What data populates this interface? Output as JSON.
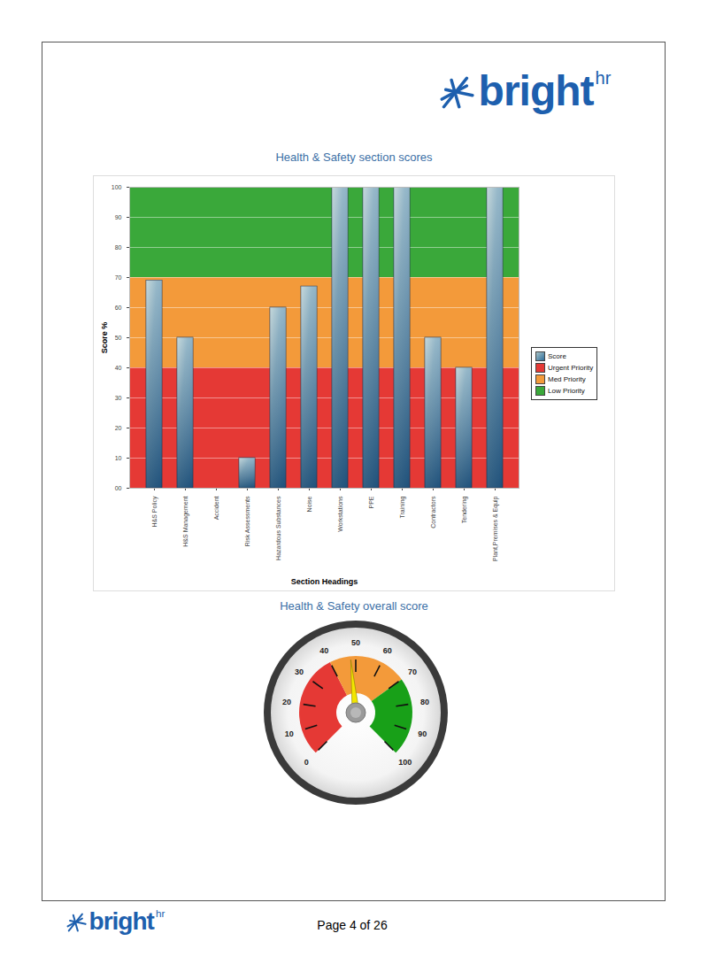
{
  "header": {
    "logo": "bright",
    "logo_sup": "hr"
  },
  "chart_data": [
    {
      "type": "bar",
      "title": "Health & Safety section scores",
      "categories": [
        "H&S Policy",
        "H&S Management",
        "Accident",
        "Risk Assessments",
        "Hazardous Substances",
        "Noise",
        "Workstations",
        "PPE",
        "Training",
        "Contractors",
        "Tendering",
        "Plant,Premises & Equip"
      ],
      "series": [
        {
          "name": "Score",
          "color": "#2f6d9a",
          "values": [
            69,
            50,
            0,
            10,
            60,
            67,
            100,
            100,
            100,
            50,
            40,
            100
          ]
        }
      ],
      "bands": [
        {
          "name": "Urgent Priority",
          "from": 0,
          "to": 40,
          "color": "#e53935"
        },
        {
          "name": "Med Priority",
          "from": 40,
          "to": 70,
          "color": "#f39a3a"
        },
        {
          "name": "Low Priority",
          "from": 70,
          "to": 100,
          "color": "#3aa83a"
        }
      ],
      "xlabel": "Section Headings",
      "ylabel": "Score %",
      "ylim": [
        0,
        100
      ],
      "yticks": [
        {
          "value": 0,
          "label": "00"
        },
        10,
        20,
        30,
        40,
        50,
        60,
        70,
        80,
        90,
        100
      ],
      "grid": true,
      "legend": "right"
    },
    {
      "type": "gauge",
      "title": "Health & Safety overall score",
      "value": 48,
      "range": [
        0,
        100
      ],
      "ticks": [
        0,
        10,
        20,
        30,
        40,
        50,
        60,
        70,
        80,
        90,
        100
      ],
      "bands": [
        {
          "from": 0,
          "to": 40,
          "color": "#e53935"
        },
        {
          "from": 40,
          "to": 70,
          "color": "#f39a3a"
        },
        {
          "from": 70,
          "to": 100,
          "color": "#18a018"
        }
      ],
      "color": "#f2e600"
    }
  ],
  "footer": {
    "logo": "bright",
    "logo_sup": "hr",
    "page": "Page 4 of 26"
  }
}
